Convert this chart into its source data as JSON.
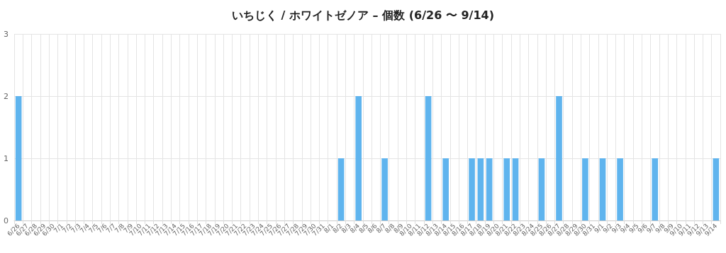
{
  "chart_data": {
    "type": "bar",
    "title": "いちじく / ホワイトゼノア – 個数 (6/26 〜 9/14)",
    "categories": [
      "6/26",
      "6/27",
      "6/28",
      "6/29",
      "6/30",
      "7/1",
      "7/2",
      "7/3",
      "7/4",
      "7/5",
      "7/6",
      "7/7",
      "7/8",
      "7/9",
      "7/10",
      "7/11",
      "7/12",
      "7/13",
      "7/14",
      "7/15",
      "7/16",
      "7/17",
      "7/18",
      "7/19",
      "7/20",
      "7/21",
      "7/22",
      "7/23",
      "7/24",
      "7/25",
      "7/26",
      "7/27",
      "7/28",
      "7/29",
      "7/30",
      "7/31",
      "8/1",
      "8/2",
      "8/3",
      "8/4",
      "8/5",
      "8/6",
      "8/7",
      "8/8",
      "8/9",
      "8/10",
      "8/11",
      "8/12",
      "8/13",
      "8/14",
      "8/15",
      "8/16",
      "8/17",
      "8/18",
      "8/19",
      "8/20",
      "8/21",
      "8/22",
      "8/23",
      "8/24",
      "8/25",
      "8/26",
      "8/27",
      "8/28",
      "8/29",
      "8/30",
      "8/31",
      "9/1",
      "9/2",
      "9/3",
      "9/4",
      "9/5",
      "9/6",
      "9/7",
      "9/8",
      "9/9",
      "9/10",
      "9/11",
      "9/12",
      "9/13",
      "9/14"
    ],
    "values": [
      2,
      0,
      0,
      0,
      0,
      0,
      0,
      0,
      0,
      0,
      0,
      0,
      0,
      0,
      0,
      0,
      0,
      0,
      0,
      0,
      0,
      0,
      0,
      0,
      0,
      0,
      0,
      0,
      0,
      0,
      0,
      0,
      0,
      0,
      0,
      0,
      0,
      1,
      0,
      2,
      0,
      0,
      1,
      0,
      0,
      0,
      0,
      2,
      0,
      1,
      0,
      0,
      1,
      1,
      1,
      0,
      1,
      1,
      0,
      0,
      1,
      0,
      2,
      0,
      0,
      1,
      0,
      1,
      0,
      1,
      0,
      0,
      0,
      1,
      0,
      0,
      0,
      0,
      0,
      0,
      1
    ],
    "color": "#5fb4ee",
    "ylim": [
      0,
      3
    ],
    "yticks": [
      0,
      1,
      2,
      3
    ],
    "grid": true
  }
}
